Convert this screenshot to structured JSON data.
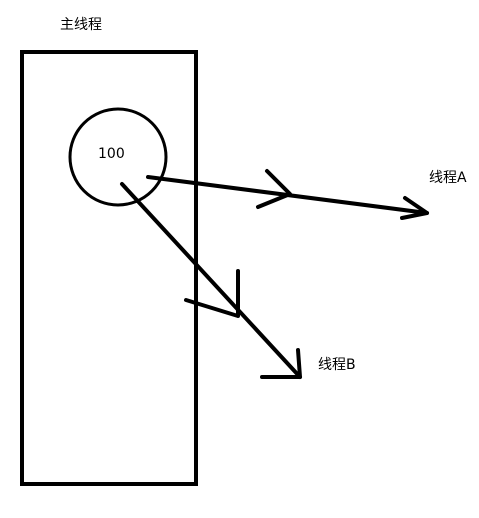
{
  "diagram": {
    "main_thread_label": "主线程",
    "shared_value": "100",
    "thread_a_label": "线程A",
    "thread_b_label": "线程B",
    "stroke_color": "#000000",
    "background_color": "#ffffff"
  }
}
